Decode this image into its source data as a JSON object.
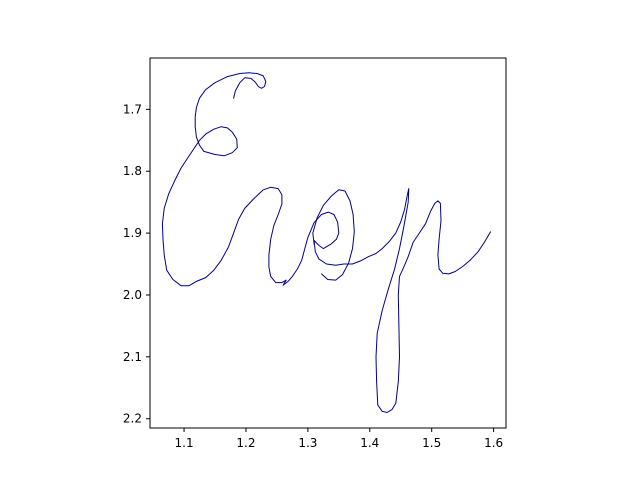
{
  "chart_data": {
    "type": "line",
    "title": "",
    "xlabel": "",
    "ylabel": "",
    "xlim": [
      1.045,
      1.62
    ],
    "ylim": [
      2.215,
      1.617
    ],
    "y_inverted": true,
    "grid": false,
    "legend": "none",
    "x_ticks": [
      {
        "value": 1.1,
        "label": "1.1"
      },
      {
        "value": 1.2,
        "label": "1.2"
      },
      {
        "value": 1.3,
        "label": "1.3"
      },
      {
        "value": 1.4,
        "label": "1.4"
      },
      {
        "value": 1.5,
        "label": "1.5"
      },
      {
        "value": 1.6,
        "label": "1.6"
      }
    ],
    "y_ticks": [
      {
        "value": 1.7,
        "label": "1.7"
      },
      {
        "value": 1.8,
        "label": "1.8"
      },
      {
        "value": 1.9,
        "label": "1.9"
      },
      {
        "value": 2.0,
        "label": "2.0"
      },
      {
        "value": 2.1,
        "label": "2.1"
      },
      {
        "value": 2.2,
        "label": "2.2"
      }
    ],
    "series": [
      {
        "color": "#00008b",
        "points": [
          [
            1.18,
            1.682
          ],
          [
            1.183,
            1.67
          ],
          [
            1.19,
            1.657
          ],
          [
            1.198,
            1.649
          ],
          [
            1.208,
            1.65
          ],
          [
            1.215,
            1.656
          ],
          [
            1.22,
            1.663
          ],
          [
            1.225,
            1.666
          ],
          [
            1.23,
            1.663
          ],
          [
            1.232,
            1.655
          ],
          [
            1.228,
            1.646
          ],
          [
            1.218,
            1.642
          ],
          [
            1.205,
            1.641
          ],
          [
            1.19,
            1.642
          ],
          [
            1.17,
            1.647
          ],
          [
            1.15,
            1.657
          ],
          [
            1.135,
            1.668
          ],
          [
            1.125,
            1.682
          ],
          [
            1.12,
            1.697
          ],
          [
            1.118,
            1.712
          ],
          [
            1.118,
            1.728
          ],
          [
            1.12,
            1.745
          ],
          [
            1.125,
            1.758
          ],
          [
            1.132,
            1.768
          ],
          [
            1.15,
            1.773
          ],
          [
            1.165,
            1.775
          ],
          [
            1.178,
            1.77
          ],
          [
            1.186,
            1.762
          ],
          [
            1.185,
            1.748
          ],
          [
            1.178,
            1.737
          ],
          [
            1.17,
            1.73
          ],
          [
            1.16,
            1.728
          ],
          [
            1.148,
            1.732
          ],
          [
            1.135,
            1.74
          ],
          [
            1.125,
            1.75
          ],
          [
            1.115,
            1.765
          ],
          [
            1.105,
            1.78
          ],
          [
            1.095,
            1.795
          ],
          [
            1.085,
            1.815
          ],
          [
            1.075,
            1.837
          ],
          [
            1.068,
            1.86
          ],
          [
            1.065,
            1.885
          ],
          [
            1.066,
            1.91
          ],
          [
            1.068,
            1.935
          ],
          [
            1.072,
            1.96
          ],
          [
            1.082,
            1.975
          ],
          [
            1.095,
            1.985
          ],
          [
            1.108,
            1.985
          ],
          [
            1.12,
            1.978
          ],
          [
            1.135,
            1.972
          ],
          [
            1.148,
            1.96
          ],
          [
            1.16,
            1.944
          ],
          [
            1.172,
            1.922
          ],
          [
            1.18,
            1.9
          ],
          [
            1.188,
            1.878
          ],
          [
            1.198,
            1.86
          ],
          [
            1.212,
            1.845
          ],
          [
            1.228,
            1.83
          ],
          [
            1.24,
            1.826
          ],
          [
            1.252,
            1.828
          ],
          [
            1.258,
            1.838
          ],
          [
            1.258,
            1.853
          ],
          [
            1.252,
            1.87
          ],
          [
            1.245,
            1.888
          ],
          [
            1.24,
            1.91
          ],
          [
            1.237,
            1.935
          ],
          [
            1.237,
            1.955
          ],
          [
            1.24,
            1.97
          ],
          [
            1.248,
            1.98
          ],
          [
            1.258,
            1.98
          ],
          [
            1.265,
            1.976
          ],
          [
            1.26,
            1.984
          ],
          [
            1.268,
            1.978
          ],
          [
            1.275,
            1.97
          ],
          [
            1.283,
            1.958
          ],
          [
            1.29,
            1.944
          ],
          [
            1.295,
            1.925
          ],
          [
            1.3,
            1.907
          ],
          [
            1.31,
            1.883
          ],
          [
            1.322,
            1.87
          ],
          [
            1.333,
            1.866
          ],
          [
            1.342,
            1.87
          ],
          [
            1.348,
            1.882
          ],
          [
            1.35,
            1.9
          ],
          [
            1.346,
            1.91
          ],
          [
            1.337,
            1.918
          ],
          [
            1.325,
            1.925
          ],
          [
            1.318,
            1.92
          ],
          [
            1.31,
            1.912
          ],
          [
            1.312,
            1.93
          ],
          [
            1.318,
            1.942
          ],
          [
            1.33,
            1.95
          ],
          [
            1.345,
            1.952
          ],
          [
            1.358,
            1.95
          ],
          [
            1.372,
            1.95
          ],
          [
            1.385,
            1.945
          ],
          [
            1.398,
            1.938
          ],
          [
            1.41,
            1.933
          ],
          [
            1.42,
            1.925
          ],
          [
            1.432,
            1.913
          ],
          [
            1.442,
            1.9
          ],
          [
            1.45,
            1.882
          ],
          [
            1.456,
            1.862
          ],
          [
            1.46,
            1.842
          ],
          [
            1.463,
            1.828
          ],
          [
            1.462,
            1.85
          ],
          [
            1.455,
            1.89
          ],
          [
            1.448,
            1.925
          ],
          [
            1.44,
            1.958
          ],
          [
            1.43,
            1.99
          ],
          [
            1.42,
            2.025
          ],
          [
            1.412,
            2.062
          ],
          [
            1.41,
            2.1
          ],
          [
            1.411,
            2.14
          ],
          [
            1.413,
            2.178
          ],
          [
            1.42,
            2.188
          ],
          [
            1.428,
            2.19
          ],
          [
            1.436,
            2.185
          ],
          [
            1.442,
            2.175
          ],
          [
            1.446,
            2.14
          ],
          [
            1.448,
            2.1
          ],
          [
            1.447,
            2.05
          ],
          [
            1.446,
            2.0
          ],
          [
            1.448,
            1.97
          ],
          [
            1.455,
            1.955
          ],
          [
            1.462,
            1.938
          ],
          [
            1.47,
            1.915
          ],
          [
            1.48,
            1.9
          ],
          [
            1.49,
            1.885
          ],
          [
            1.498,
            1.865
          ],
          [
            1.505,
            1.852
          ],
          [
            1.51,
            1.848
          ],
          [
            1.514,
            1.852
          ],
          [
            1.515,
            1.88
          ],
          [
            1.512,
            1.91
          ],
          [
            1.51,
            1.935
          ],
          [
            1.512,
            1.958
          ],
          [
            1.518,
            1.965
          ],
          [
            1.528,
            1.966
          ],
          [
            1.538,
            1.962
          ],
          [
            1.55,
            1.954
          ],
          [
            1.562,
            1.944
          ],
          [
            1.575,
            1.93
          ],
          [
            1.585,
            1.915
          ],
          [
            1.595,
            1.898
          ]
        ]
      },
      {
        "color": "#00008b",
        "points": [
          [
            1.31,
            1.918
          ],
          [
            1.308,
            1.9
          ],
          [
            1.315,
            1.875
          ],
          [
            1.325,
            1.855
          ],
          [
            1.338,
            1.84
          ],
          [
            1.35,
            1.83
          ],
          [
            1.36,
            1.832
          ],
          [
            1.368,
            1.848
          ],
          [
            1.373,
            1.87
          ],
          [
            1.375,
            1.898
          ],
          [
            1.372,
            1.925
          ],
          [
            1.366,
            1.948
          ],
          [
            1.356,
            1.967
          ],
          [
            1.345,
            1.976
          ],
          [
            1.332,
            1.975
          ],
          [
            1.322,
            1.966
          ]
        ]
      }
    ]
  }
}
